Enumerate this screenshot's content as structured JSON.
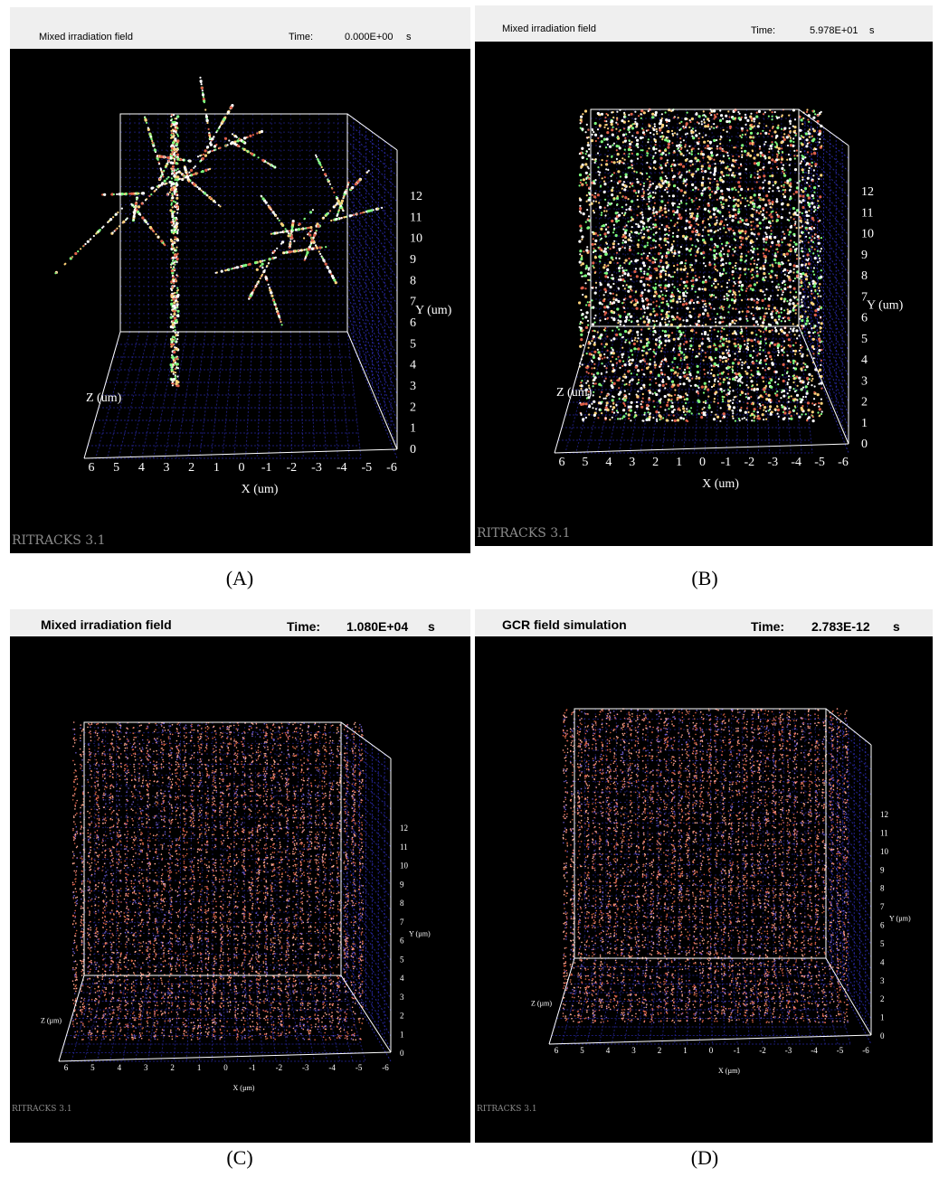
{
  "brand": "RITRACKS 3.1",
  "panels": [
    {
      "id": "A",
      "label": "(A)",
      "title": "Mixed irradiation field",
      "time_label": "Time:",
      "time_value": "0.000E+00",
      "time_unit": "s",
      "y_ticks": [
        "12",
        "11",
        "10",
        "9",
        "8",
        "7",
        "6",
        "5",
        "4",
        "3",
        "2",
        "1",
        "0"
      ],
      "x_ticks": [
        "6",
        "5",
        "4",
        "3",
        "2",
        "1",
        "0",
        "-1",
        "-2",
        "-3",
        "-4",
        "-5",
        "-6"
      ],
      "x_axis_label": "X (um)",
      "y_axis_label": "Y (um)",
      "z_axis_label": "Z (um)",
      "density": "sparse tracks"
    },
    {
      "id": "B",
      "label": "(B)",
      "title": "Mixed irradiation field",
      "time_label": "Time:",
      "time_value": "5.978E+01",
      "time_unit": "s",
      "y_ticks": [
        "12",
        "11",
        "10",
        "9",
        "8",
        "7",
        "6",
        "5",
        "4",
        "3",
        "2",
        "1",
        "0"
      ],
      "x_ticks": [
        "6",
        "5",
        "4",
        "3",
        "2",
        "1",
        "0",
        "-1",
        "-2",
        "-3",
        "-4",
        "-5",
        "-6"
      ],
      "x_axis_label": "X (um)",
      "y_axis_label": "Y (um)",
      "z_axis_label": "Z (um)",
      "density": "dense"
    },
    {
      "id": "C",
      "label": "(C)",
      "title": "Mixed irradiation field",
      "time_label": "Time:",
      "time_value": "1.080E+04",
      "time_unit": "s",
      "y_ticks": [
        "12",
        "11",
        "10",
        "9",
        "8",
        "7",
        "6",
        "5",
        "4",
        "3",
        "2",
        "1",
        "0"
      ],
      "x_ticks": [
        "6",
        "5",
        "4",
        "3",
        "2",
        "1",
        "0",
        "-1",
        "-2",
        "-3",
        "-4",
        "-5",
        "-6"
      ],
      "x_axis_label": "X (µm)",
      "y_axis_label": "Y (µm)",
      "z_axis_label": "Z (µm)",
      "density": "very dense"
    },
    {
      "id": "D",
      "label": "(D)",
      "title": "GCR field simulation",
      "time_label": "Time:",
      "time_value": "2.783E-12",
      "time_unit": "s",
      "y_ticks": [
        "12",
        "11",
        "10",
        "9",
        "8",
        "7",
        "6",
        "5",
        "4",
        "3",
        "2",
        "1",
        "0"
      ],
      "x_ticks": [
        "6",
        "5",
        "4",
        "3",
        "2",
        "1",
        "0",
        "-1",
        "-2",
        "-3",
        "-4",
        "-5",
        "-6"
      ],
      "x_axis_label": "X (µm)",
      "y_axis_label": "Y (µm)",
      "z_axis_label": "Z (µm)",
      "density": "very dense"
    }
  ],
  "colors": {
    "frame": "#ffffff",
    "grid": "#2a2aa8",
    "track_light": "#ffffff",
    "track_red": "#e0604a",
    "track_pink": "#ff9a8a",
    "background": "#000000",
    "titlebar": "#efefef"
  }
}
